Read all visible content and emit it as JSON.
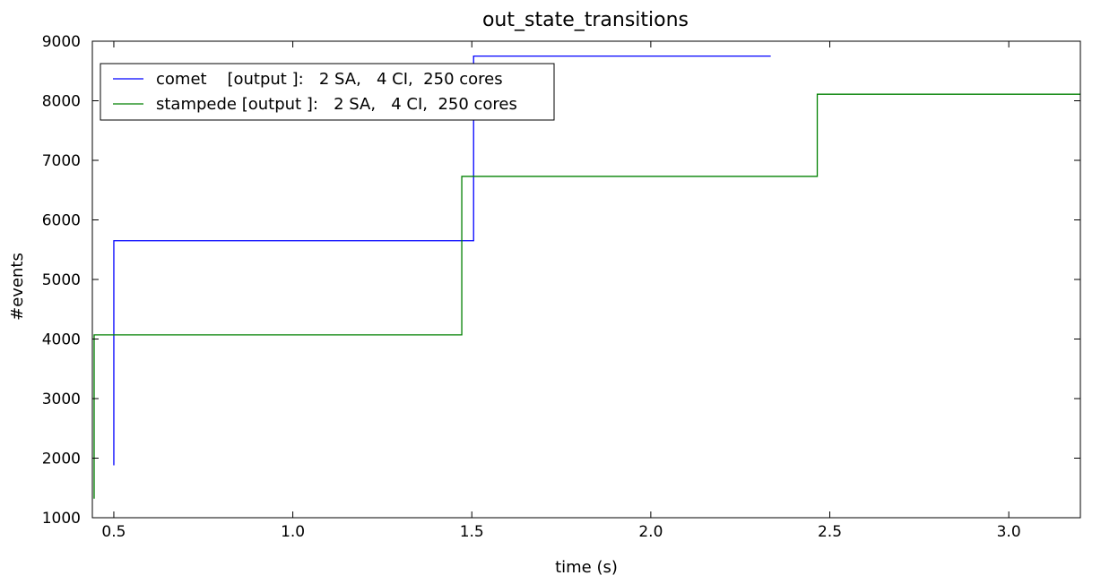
{
  "chart_data": {
    "type": "line",
    "title": "out_state_transitions",
    "xlabel": "time (s)",
    "ylabel": "#events",
    "xlim": [
      0.44,
      3.2
    ],
    "ylim": [
      1000,
      9000
    ],
    "x_ticks": [
      0.5,
      1.0,
      1.5,
      2.0,
      2.5,
      3.0
    ],
    "x_tick_labels": [
      "0.5",
      "1.0",
      "1.5",
      "2.0",
      "2.5",
      "3.0"
    ],
    "y_ticks": [
      1000,
      2000,
      3000,
      4000,
      5000,
      6000,
      7000,
      8000,
      9000
    ],
    "y_tick_labels": [
      "1000",
      "2000",
      "3000",
      "4000",
      "5000",
      "6000",
      "7000",
      "8000",
      "9000"
    ],
    "grid": false,
    "legend_position": "top-left",
    "series": [
      {
        "name": "comet    [output ]:   2 SA,   4 CI,  250 cores",
        "color": "#0000ff",
        "step": "post",
        "x": [
          0.5,
          0.5,
          1.505,
          1.505,
          2.335
        ],
        "y": [
          1880,
          5650,
          5650,
          8750,
          8750
        ]
      },
      {
        "name": "stampede [output ]:   2 SA,   4 CI,  250 cores",
        "color": "#008000",
        "step": "post",
        "x": [
          0.445,
          0.445,
          1.472,
          1.472,
          2.465,
          2.465,
          3.2
        ],
        "y": [
          1320,
          4070,
          4070,
          6730,
          6730,
          8110,
          8110
        ]
      }
    ]
  }
}
